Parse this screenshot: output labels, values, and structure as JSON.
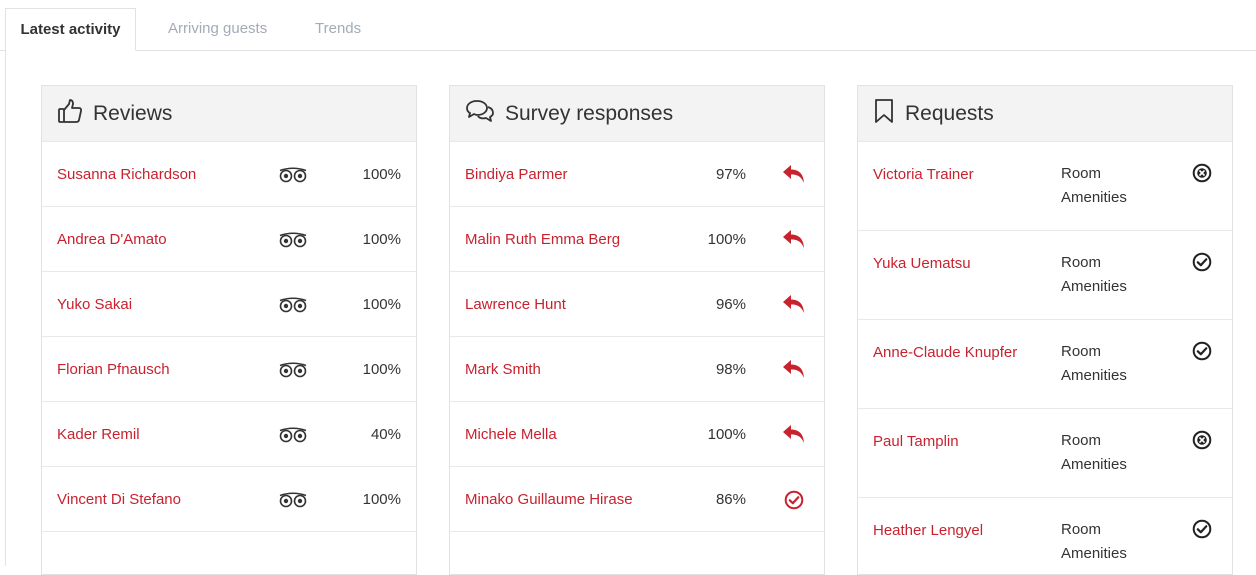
{
  "tabs": [
    {
      "label": "Latest activity",
      "active": true
    },
    {
      "label": "Arriving guests",
      "active": false
    },
    {
      "label": "Trends",
      "active": false
    }
  ],
  "colors": {
    "accent": "#c8222f",
    "muted_tab": "#a3abb6",
    "header_bg": "#f3f3f3"
  },
  "reviews": {
    "title": "Reviews",
    "icon": "thumbs-up-icon",
    "items": [
      {
        "name": "Susanna Richardson",
        "source_icon": "tripadvisor-icon",
        "score": "100%"
      },
      {
        "name": "Andrea D'Amato",
        "source_icon": "tripadvisor-icon",
        "score": "100%"
      },
      {
        "name": "Yuko Sakai",
        "source_icon": "tripadvisor-icon",
        "score": "100%"
      },
      {
        "name": "Florian Pfnausch",
        "source_icon": "tripadvisor-icon",
        "score": "100%"
      },
      {
        "name": "Kader Remil",
        "source_icon": "tripadvisor-icon",
        "score": "40%"
      },
      {
        "name": "Vincent Di Stefano",
        "source_icon": "tripadvisor-icon",
        "score": "100%"
      }
    ]
  },
  "surveys": {
    "title": "Survey responses",
    "icon": "comments-icon",
    "items": [
      {
        "name": "Bindiya Parmer",
        "score": "97%",
        "action_icon": "reply-icon"
      },
      {
        "name": "Malin Ruth Emma Berg",
        "score": "100%",
        "action_icon": "reply-icon"
      },
      {
        "name": "Lawrence Hunt",
        "score": "96%",
        "action_icon": "reply-icon"
      },
      {
        "name": "Mark Smith",
        "score": "98%",
        "action_icon": "reply-icon"
      },
      {
        "name": "Michele Mella",
        "score": "100%",
        "action_icon": "reply-icon"
      },
      {
        "name": "Minako Guillaume Hirase",
        "score": "86%",
        "action_icon": "check-circle-icon"
      }
    ]
  },
  "requests": {
    "title": "Requests",
    "icon": "bookmark-icon",
    "items": [
      {
        "name": "Victoria Trainer",
        "category_line1": "Room",
        "category_line2": "Amenities",
        "status_icon": "x-circle-icon"
      },
      {
        "name": "Yuka Uematsu",
        "category_line1": "Room",
        "category_line2": "Amenities",
        "status_icon": "check-circle-icon"
      },
      {
        "name": "Anne-Claude Knupfer",
        "category_line1": "Room",
        "category_line2": "Amenities",
        "status_icon": "check-circle-icon"
      },
      {
        "name": "Paul Tamplin",
        "category_line1": "Room",
        "category_line2": "Amenities",
        "status_icon": "x-circle-icon"
      },
      {
        "name": "Heather Lengyel",
        "category_line1": "Room",
        "category_line2": "Amenities",
        "status_icon": "check-circle-icon"
      }
    ]
  }
}
